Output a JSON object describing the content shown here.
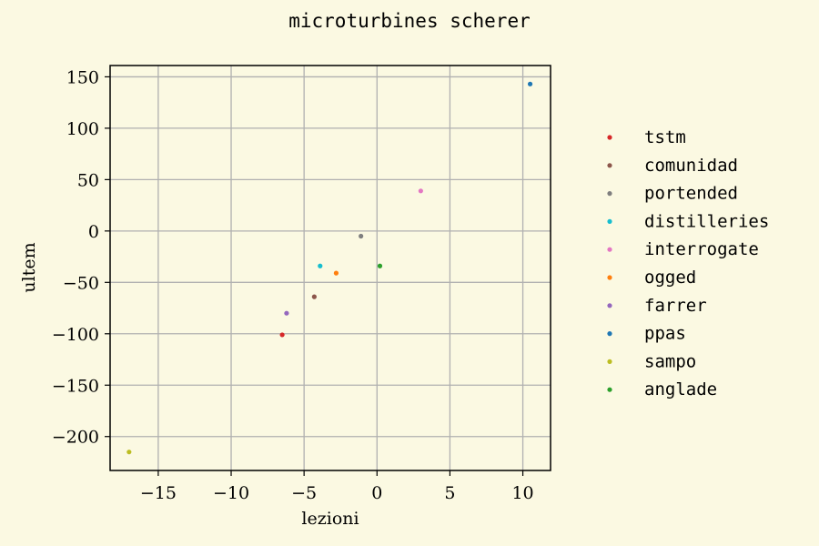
{
  "chart_data": {
    "type": "scatter",
    "title": "microturbines scherer",
    "xlabel": "lezioni",
    "ylabel": "ultem",
    "xlim": [
      -18.3,
      11.9
    ],
    "ylim": [
      -233,
      161
    ],
    "xticks": [
      -15,
      -10,
      -5,
      0,
      5,
      10
    ],
    "yticks": [
      150,
      100,
      50,
      0,
      -50,
      -100,
      -150,
      -200
    ],
    "grid": true,
    "legend_position": "right",
    "series": [
      {
        "name": "tstm",
        "color": "#d62728",
        "points": [
          [
            -6.5,
            -101
          ]
        ]
      },
      {
        "name": "comunidad",
        "color": "#8c564b",
        "points": [
          [
            -4.3,
            -64
          ]
        ]
      },
      {
        "name": "portended",
        "color": "#7f7f7f",
        "points": [
          [
            -1.1,
            -5
          ]
        ]
      },
      {
        "name": "distilleries",
        "color": "#17becf",
        "points": [
          [
            -3.9,
            -34
          ]
        ]
      },
      {
        "name": "interrogate",
        "color": "#e377c2",
        "points": [
          [
            3.0,
            39
          ]
        ]
      },
      {
        "name": "ogged",
        "color": "#ff7f0e",
        "points": [
          [
            -2.8,
            -41
          ]
        ]
      },
      {
        "name": "farrer",
        "color": "#9467bd",
        "points": [
          [
            -6.2,
            -80
          ]
        ]
      },
      {
        "name": "ppas",
        "color": "#1f77b4",
        "points": [
          [
            10.5,
            143
          ]
        ]
      },
      {
        "name": "sampo",
        "color": "#bcbd22",
        "points": [
          [
            -17.0,
            -215
          ]
        ]
      },
      {
        "name": "anglade",
        "color": "#2ca02c",
        "points": [
          [
            0.2,
            -34
          ]
        ]
      }
    ]
  }
}
